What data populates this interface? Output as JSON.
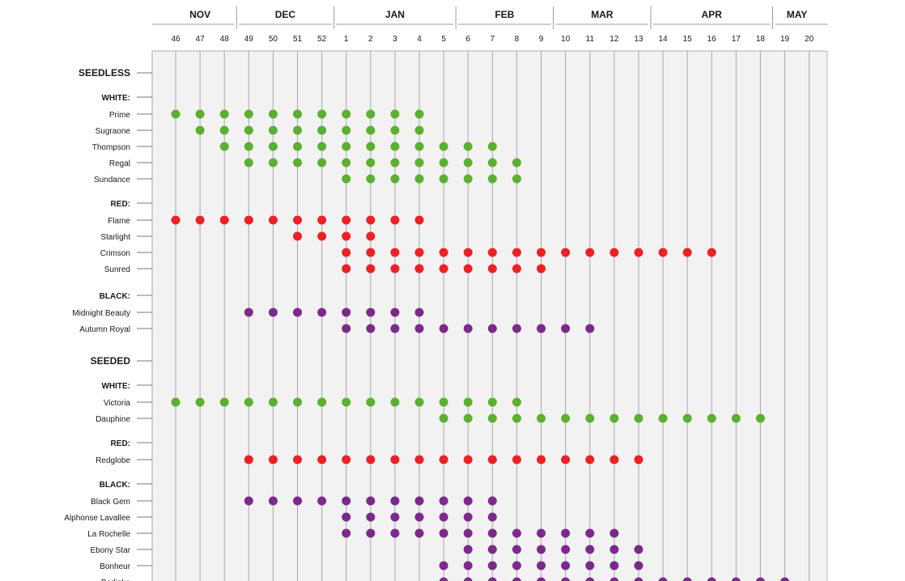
{
  "chart_data": {
    "type": "scatter",
    "months": [
      "NOV",
      "DEC",
      "JAN",
      "FEB",
      "MAR",
      "APR",
      "MAY"
    ],
    "weeks": [
      "46",
      "47",
      "48",
      "49",
      "50",
      "51",
      "52",
      "1",
      "2",
      "3",
      "4",
      "5",
      "6",
      "7",
      "8",
      "9",
      "10",
      "11",
      "12",
      "13",
      "14",
      "15",
      "16",
      "17",
      "18",
      "19",
      "20"
    ],
    "month_boundaries_after_week_index": [
      2,
      6,
      11,
      15,
      19,
      24
    ],
    "colors": {
      "white": "#5bb031",
      "red": "#ec2125",
      "black": "#7b2a8a"
    },
    "rows": [
      {
        "kind": "section",
        "label": "SEEDLESS"
      },
      {
        "kind": "group",
        "label": "WHITE:"
      },
      {
        "kind": "item",
        "label": "Prime",
        "color": "white",
        "weeks": [
          "46",
          "47",
          "48",
          "49",
          "50",
          "51",
          "52",
          "1",
          "2",
          "3",
          "4"
        ]
      },
      {
        "kind": "item",
        "label": "Sugraone",
        "color": "white",
        "weeks": [
          "47",
          "48",
          "49",
          "50",
          "51",
          "52",
          "1",
          "2",
          "3",
          "4"
        ]
      },
      {
        "kind": "item",
        "label": "Thompson",
        "color": "white",
        "weeks": [
          "48",
          "49",
          "50",
          "51",
          "52",
          "1",
          "2",
          "3",
          "4",
          "5",
          "6",
          "7"
        ]
      },
      {
        "kind": "item",
        "label": "Regal",
        "color": "white",
        "weeks": [
          "49",
          "50",
          "51",
          "52",
          "1",
          "2",
          "3",
          "4",
          "5",
          "6",
          "7",
          "8"
        ]
      },
      {
        "kind": "item",
        "label": "Sundance",
        "color": "white",
        "weeks": [
          "1",
          "2",
          "3",
          "4",
          "5",
          "6",
          "7",
          "8"
        ]
      },
      {
        "kind": "group",
        "label": "RED:"
      },
      {
        "kind": "item",
        "label": "Flame",
        "color": "red",
        "weeks": [
          "46",
          "47",
          "48",
          "49",
          "50",
          "51",
          "52",
          "1",
          "2",
          "3",
          "4"
        ]
      },
      {
        "kind": "item",
        "label": "Starlight",
        "color": "red",
        "weeks": [
          "51",
          "52",
          "1",
          "2"
        ]
      },
      {
        "kind": "item",
        "label": "Crimson",
        "color": "red",
        "weeks": [
          "1",
          "2",
          "3",
          "4",
          "5",
          "6",
          "7",
          "8",
          "9",
          "10",
          "11",
          "12",
          "13",
          "14",
          "15",
          "16"
        ]
      },
      {
        "kind": "item",
        "label": "Sunred",
        "color": "red",
        "weeks": [
          "1",
          "2",
          "3",
          "4",
          "5",
          "6",
          "7",
          "8",
          "9"
        ]
      },
      {
        "kind": "group",
        "label": "BLACK:"
      },
      {
        "kind": "item",
        "label": "Midnight Beauty",
        "color": "black",
        "weeks": [
          "49",
          "50",
          "51",
          "52",
          "1",
          "2",
          "3",
          "4"
        ]
      },
      {
        "kind": "item",
        "label": "Autumn Royal",
        "color": "black",
        "weeks": [
          "1",
          "2",
          "3",
          "4",
          "5",
          "6",
          "7",
          "8",
          "9",
          "10",
          "11"
        ]
      },
      {
        "kind": "section",
        "label": "SEEDED"
      },
      {
        "kind": "group",
        "label": "WHITE:"
      },
      {
        "kind": "item",
        "label": "Victoria",
        "color": "white",
        "weeks": [
          "46",
          "47",
          "48",
          "49",
          "50",
          "51",
          "52",
          "1",
          "2",
          "3",
          "4",
          "5",
          "6",
          "7",
          "8"
        ]
      },
      {
        "kind": "item",
        "label": "Dauphine",
        "color": "white",
        "weeks": [
          "5",
          "6",
          "7",
          "8",
          "9",
          "10",
          "11",
          "12",
          "13",
          "14",
          "15",
          "16",
          "17",
          "18"
        ]
      },
      {
        "kind": "group",
        "label": "RED:"
      },
      {
        "kind": "item",
        "label": "Redglobe",
        "color": "red",
        "weeks": [
          "49",
          "50",
          "51",
          "52",
          "1",
          "2",
          "3",
          "4",
          "5",
          "6",
          "7",
          "8",
          "9",
          "10",
          "11",
          "12",
          "13"
        ]
      },
      {
        "kind": "group",
        "label": "BLACK:"
      },
      {
        "kind": "item",
        "label": "Black Gem",
        "color": "black",
        "weeks": [
          "49",
          "50",
          "51",
          "52",
          "1",
          "2",
          "3",
          "4",
          "5",
          "6",
          "7"
        ]
      },
      {
        "kind": "item",
        "label": "Alphonse Lavallee",
        "color": "black",
        "weeks": [
          "1",
          "2",
          "3",
          "4",
          "5",
          "6",
          "7"
        ]
      },
      {
        "kind": "item",
        "label": "La Rochelle",
        "color": "black",
        "weeks": [
          "1",
          "2",
          "3",
          "4",
          "5",
          "6",
          "7",
          "8",
          "9",
          "10",
          "11",
          "12"
        ]
      },
      {
        "kind": "item",
        "label": "Ebony Star",
        "color": "black",
        "weeks": [
          "6",
          "7",
          "8",
          "9",
          "10",
          "11",
          "12",
          "13"
        ]
      },
      {
        "kind": "item",
        "label": "Bonheur",
        "color": "black",
        "weeks": [
          "5",
          "6",
          "7",
          "8",
          "9",
          "10",
          "11",
          "12",
          "13"
        ]
      },
      {
        "kind": "item",
        "label": "Barlinka",
        "color": "black",
        "weeks": [
          "5",
          "6",
          "7",
          "8",
          "9",
          "10",
          "11",
          "12",
          "13",
          "14",
          "15",
          "16",
          "17",
          "18",
          "19"
        ]
      }
    ]
  }
}
